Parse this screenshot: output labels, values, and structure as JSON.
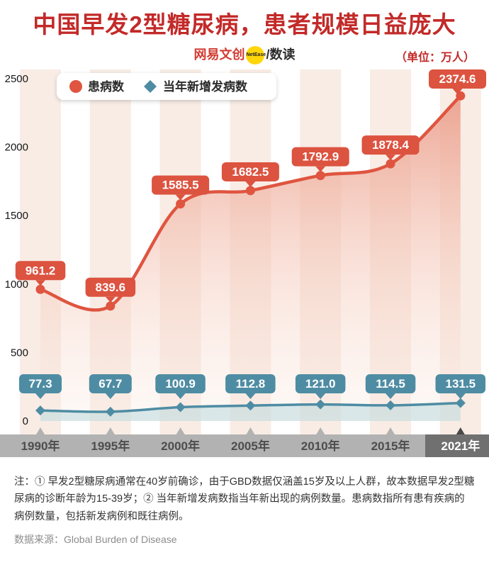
{
  "header": {
    "title": "中国早发2型糖尿病，患者规模日益庞大",
    "brand": {
      "left": "网易文创",
      "badge": "NetEase",
      "slash": "/",
      "right": "数读"
    },
    "unit": "（单位：万人）"
  },
  "chart_data": {
    "type": "line",
    "categories": [
      "1990年",
      "1995年",
      "2000年",
      "2005年",
      "2010年",
      "2015年",
      "2021年"
    ],
    "series": [
      {
        "name": "患病数",
        "color": "#df5540",
        "marker": "circle",
        "values": [
          961.2,
          839.6,
          1585.5,
          1682.5,
          1792.9,
          1878.4,
          2374.6
        ]
      },
      {
        "name": "当年新增发病数",
        "color": "#4e8ca3",
        "marker": "diamond",
        "values": [
          77.3,
          67.7,
          100.9,
          112.8,
          121.0,
          114.5,
          131.5
        ]
      }
    ],
    "ylim": [
      0,
      2500
    ],
    "yticks": [
      0,
      500,
      1000,
      1500,
      2000,
      2500
    ],
    "legend_position": "top-left",
    "grid": false,
    "highlight_category": "2021年",
    "colors": {
      "stripe": "#f8ece5",
      "axis_bar": "#b2b2b2",
      "axis_bar_dark": "#707070",
      "axis_text": "#4d4d4d",
      "axis_text_dark": "#ffffff",
      "red_label_box": "#dc5340",
      "teal_label_box": "#4e8ca3",
      "teal_area": "#bcd9dd"
    }
  },
  "notes": {
    "line1": "注：① 早发2型糖尿病通常在40岁前确诊，由于GBD数据仅涵盖15岁及以上人群，故本数据早发2型糖尿病的诊断年龄为15-39岁；② 当年新增发病数指当年新出现的病例数量。患病数指所有患有疾病的病例数量，包括新发病例和既往病例。",
    "source": "数据来源：Global Burden of Disease"
  }
}
